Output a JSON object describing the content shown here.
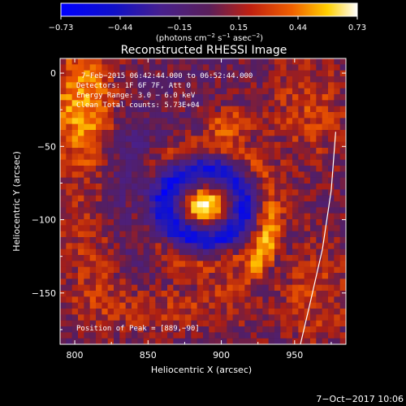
{
  "chart_data": {
    "type": "heatmap",
    "title": "Reconstructed RHESSI Image",
    "xlabel": "Heliocentric X (arcsec)",
    "ylabel": "Heliocentric Y (arcsec)",
    "xlim": [
      790,
      985
    ],
    "ylim": [
      -185,
      10
    ],
    "xticks": [
      800,
      850,
      900,
      950
    ],
    "yticks": [
      0,
      -50,
      -100,
      -150
    ],
    "xtick_labels": [
      "800",
      "850",
      "900",
      "950"
    ],
    "ytick_labels": [
      "0",
      "−50",
      "−100",
      "−150"
    ],
    "colorbar": {
      "min": -0.73,
      "max": 0.73,
      "tick_labels": [
        "−0.73",
        "−0.44",
        "−0.15",
        "0.15",
        "0.44",
        "0.73"
      ],
      "unit_main": "(photons cm",
      "unit_sup1": "−2",
      "unit_mid": " s",
      "unit_sup2": "−1",
      "unit_mid2": " asec",
      "unit_sup3": "−2",
      "unit_end": ")"
    },
    "annotations": [
      "7−Feb−2015 06:42:44.000 to 06:52:44.000",
      "Detectors: 1F 6F 7F, Att 0",
      "Energy Range: 3.0 − 6.0 keV",
      "Clean     Total counts: 5.73E+04"
    ],
    "peak_label": "Position of Peak = [889,−90]",
    "peak": {
      "x": 889,
      "y": -90,
      "value": 0.73
    },
    "features": [
      {
        "name": "core",
        "x": 889,
        "y": -90,
        "value": 0.73
      },
      {
        "name": "arc_right",
        "x": 930,
        "y": -108,
        "value": 0.35
      },
      {
        "name": "blob_upper",
        "x": 905,
        "y": -35,
        "value": 0.3
      },
      {
        "name": "corner_upper_left",
        "x": 805,
        "y": -20,
        "value": 0.45
      },
      {
        "name": "ring_dark",
        "x": 875,
        "y": -95,
        "value": -0.55
      },
      {
        "name": "left_halo",
        "x": 815,
        "y": -120,
        "value": 0.2
      }
    ],
    "limb_curve": [
      [
        978,
        -40
      ],
      [
        975,
        -80
      ],
      [
        969,
        -120
      ],
      [
        961,
        -155
      ],
      [
        954,
        -185
      ]
    ],
    "footer": "7−Oct−2017 10:06"
  }
}
